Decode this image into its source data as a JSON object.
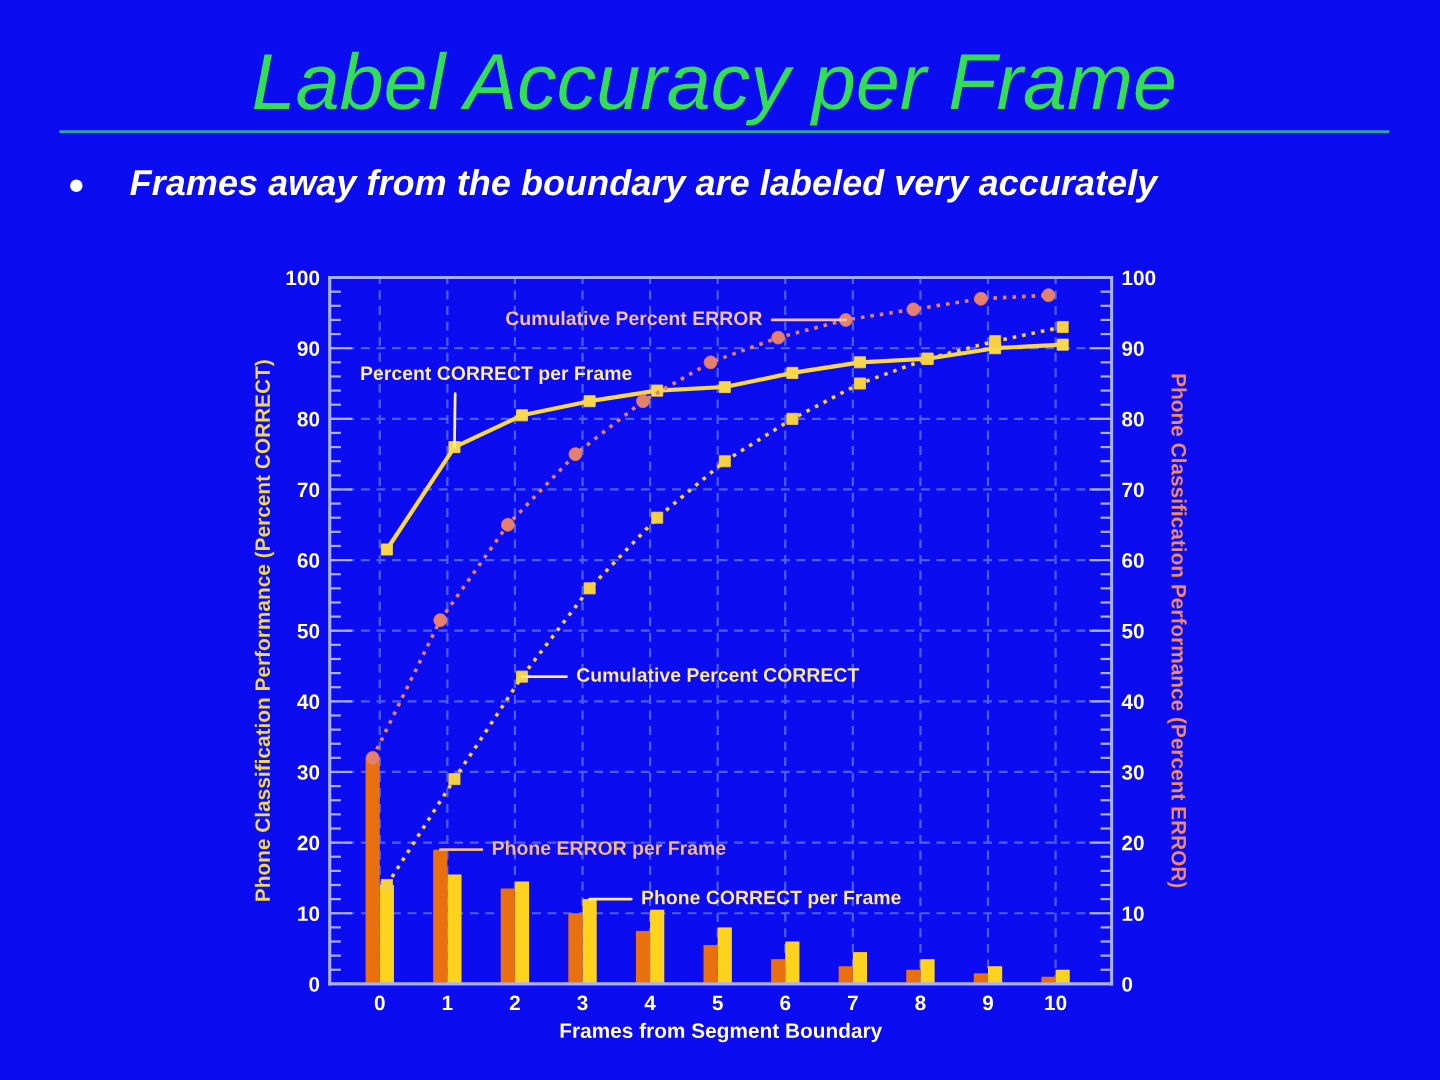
{
  "chart_data": {
    "type": "bar",
    "title": "Label Accuracy per Frame",
    "subtitle": "Frames away from the boundary are labeled very accurately",
    "xlabel": "Frames from Segment Boundary",
    "ylabel": "Phone Classification Performance (Percent CORRECT)",
    "y2label": "Phone Classification Performance (Percent ERROR)",
    "categories": [
      "0",
      "1",
      "2",
      "3",
      "4",
      "5",
      "6",
      "7",
      "8",
      "9",
      "10"
    ],
    "ylim": [
      0,
      100
    ],
    "yticks": [
      0,
      {
        "value": 2,
        "label": null
      },
      {
        "value": 4,
        "label": null
      },
      {
        "value": 6,
        "label": null
      },
      {
        "value": 8,
        "label": null
      },
      10,
      {
        "value": 12,
        "label": null
      },
      {
        "value": 14,
        "label": null
      },
      {
        "value": 16,
        "label": null
      },
      {
        "value": 18,
        "label": null
      },
      20,
      {
        "value": 22,
        "label": null
      },
      {
        "value": 24,
        "label": null
      },
      {
        "value": 26,
        "label": null
      },
      {
        "value": 28,
        "label": null
      },
      30,
      {
        "value": 32,
        "label": null
      },
      {
        "value": 34,
        "label": null
      },
      {
        "value": 36,
        "label": null
      },
      {
        "value": 38,
        "label": null
      },
      40,
      {
        "value": 42,
        "label": null
      },
      {
        "value": 44,
        "label": null
      },
      {
        "value": 46,
        "label": null
      },
      {
        "value": 48,
        "label": null
      },
      50,
      {
        "value": 52,
        "label": null
      },
      {
        "value": 54,
        "label": null
      },
      {
        "value": 56,
        "label": null
      },
      {
        "value": 58,
        "label": null
      },
      60,
      {
        "value": 62,
        "label": null
      },
      {
        "value": 64,
        "label": null
      },
      {
        "value": 66,
        "label": null
      },
      {
        "value": 68,
        "label": null
      },
      70,
      {
        "value": 72,
        "label": null
      },
      {
        "value": 74,
        "label": null
      },
      {
        "value": 76,
        "label": null
      },
      {
        "value": 78,
        "label": null
      },
      80,
      {
        "value": 82,
        "label": null
      },
      {
        "value": 84,
        "label": null
      },
      {
        "value": 86,
        "label": null
      },
      {
        "value": 88,
        "label": null
      },
      90,
      {
        "value": 92,
        "label": null
      },
      {
        "value": 94,
        "label": null
      },
      {
        "value": 96,
        "label": null
      },
      {
        "value": 98,
        "label": null
      },
      100
    ],
    "y2lim": [
      0,
      100
    ],
    "y2ticks": [
      0,
      {
        "value": 2,
        "label": null
      },
      {
        "value": 4,
        "label": null
      },
      {
        "value": 6,
        "label": null
      },
      {
        "value": 8,
        "label": null
      },
      10,
      {
        "value": 12,
        "label": null
      },
      {
        "value": 14,
        "label": null
      },
      {
        "value": 16,
        "label": null
      },
      {
        "value": 18,
        "label": null
      },
      20,
      {
        "value": 22,
        "label": null
      },
      {
        "value": 24,
        "label": null
      },
      {
        "value": 26,
        "label": null
      },
      {
        "value": 28,
        "label": null
      },
      30,
      {
        "value": 32,
        "label": null
      },
      {
        "value": 34,
        "label": null
      },
      {
        "value": 36,
        "label": null
      },
      {
        "value": 38,
        "label": null
      },
      40,
      {
        "value": 42,
        "label": null
      },
      {
        "value": 44,
        "label": null
      },
      {
        "value": 46,
        "label": null
      },
      {
        "value": 48,
        "label": null
      },
      50,
      {
        "value": 52,
        "label": null
      },
      {
        "value": 54,
        "label": null
      },
      {
        "value": 56,
        "label": null
      },
      {
        "value": 58,
        "label": null
      },
      60,
      {
        "value": 62,
        "label": null
      },
      {
        "value": 64,
        "label": null
      },
      {
        "value": 66,
        "label": null
      },
      {
        "value": 68,
        "label": null
      },
      70,
      {
        "value": 72,
        "label": null
      },
      {
        "value": 74,
        "label": null
      },
      {
        "value": 76,
        "label": null
      },
      {
        "value": 78,
        "label": null
      },
      80,
      {
        "value": 82,
        "label": null
      },
      {
        "value": 84,
        "label": null
      },
      {
        "value": 86,
        "label": null
      },
      {
        "value": 88,
        "label": null
      },
      90,
      {
        "value": 92,
        "label": null
      },
      {
        "value": 94,
        "label": null
      },
      {
        "value": 96,
        "label": null
      },
      {
        "value": 98,
        "label": null
      },
      100
    ],
    "grid": true,
    "series": [
      {
        "name": "Phone ERROR per Frame",
        "axis": "y2",
        "color": "#e8700f",
        "values": [
          32,
          19,
          13.5,
          10,
          7.5,
          5.5,
          3.5,
          2.5,
          2,
          1.5,
          1
        ]
      },
      {
        "name": "Phone CORRECT per Frame",
        "axis": "y",
        "color": "#ffd21e",
        "values": [
          14,
          15.5,
          14.5,
          12,
          10.5,
          8,
          6,
          4.5,
          3.5,
          2.5,
          2
        ]
      },
      {
        "name": "Cumulative Percent ERROR",
        "type": "line",
        "axis": "y2",
        "color": "#e4806c",
        "marker": "circle",
        "line_style": "dotted",
        "values": [
          32,
          51.5,
          65,
          75,
          82.5,
          88,
          91.5,
          94,
          95.5,
          97,
          97.5
        ]
      },
      {
        "name": "Percent CORRECT per Frame",
        "type": "line",
        "axis": "y",
        "color": "#f8d84a",
        "marker": "square",
        "line_style": "solid",
        "values": [
          61.5,
          76,
          80.5,
          82.5,
          84,
          84.5,
          86.5,
          88,
          88.5,
          90,
          90.5
        ]
      },
      {
        "name": "Cumulative Percent CORRECT",
        "type": "line",
        "axis": "y",
        "color": "#f5d040",
        "marker": "square",
        "line_style": "dotted",
        "values": [
          14,
          29,
          43.5,
          56,
          66,
          74,
          80,
          85,
          88.5,
          91,
          93
        ]
      }
    ]
  }
}
